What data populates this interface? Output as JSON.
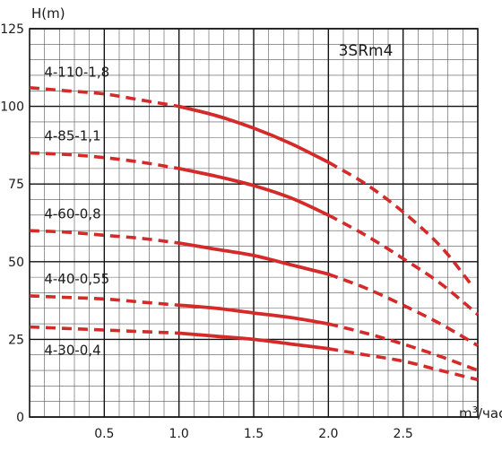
{
  "chart_data": {
    "type": "line",
    "title": "3SRm4",
    "ylabel": "H(m)",
    "xlabel_base": "m",
    "xlabel_sup": "3",
    "xlabel_tail": "/час",
    "xlim": [
      0,
      3.0
    ],
    "ylim": [
      0,
      125
    ],
    "x_ticks": [
      0.5,
      1.0,
      1.5,
      2.0,
      2.5
    ],
    "x_tick_labels": [
      "0.5",
      "1.0",
      "1.5",
      "2.0",
      "2.5"
    ],
    "y_ticks": [
      0,
      25,
      50,
      75,
      100,
      125
    ],
    "y_tick_labels": [
      "0",
      "25",
      "50",
      "75",
      "100",
      "125"
    ],
    "grid": true,
    "line_color": "#d42a2a",
    "series": [
      {
        "name": "4-110-1,8",
        "x": [
          0,
          0.25,
          0.5,
          0.75,
          1.0,
          1.25,
          1.5,
          1.75,
          2.0,
          2.25,
          2.5,
          2.75,
          2.95
        ],
        "y": [
          106,
          105,
          104,
          102,
          100,
          97,
          93,
          88,
          82,
          75,
          66,
          55,
          43
        ],
        "solid_range": [
          1.0,
          2.0
        ]
      },
      {
        "name": "4-85-1,1",
        "x": [
          0,
          0.25,
          0.5,
          0.75,
          1.0,
          1.25,
          1.5,
          1.75,
          2.0,
          2.25,
          2.5,
          2.75,
          3.0
        ],
        "y": [
          85,
          84.5,
          83.5,
          82,
          80,
          77.5,
          74.5,
          70.5,
          65,
          58.5,
          51,
          43,
          33
        ],
        "solid_range": [
          1.0,
          2.0
        ]
      },
      {
        "name": "4-60-0,8",
        "x": [
          0,
          0.25,
          0.5,
          0.75,
          1.0,
          1.25,
          1.5,
          1.75,
          2.0,
          2.25,
          2.5,
          2.75,
          3.0
        ],
        "y": [
          60,
          59.5,
          58.5,
          57.5,
          56,
          54,
          52,
          49,
          46,
          41.5,
          36,
          30,
          23
        ],
        "solid_range": [
          1.0,
          2.0
        ]
      },
      {
        "name": "4-40-0,55",
        "x": [
          0,
          0.25,
          0.5,
          0.75,
          1.0,
          1.25,
          1.5,
          1.75,
          2.0,
          2.25,
          2.5,
          2.75,
          3.0
        ],
        "y": [
          39,
          38.5,
          38,
          37,
          36,
          35,
          33.5,
          32,
          30,
          27,
          23.5,
          19.5,
          15
        ],
        "solid_range": [
          1.0,
          2.0
        ]
      },
      {
        "name": "4-30-0,4",
        "x": [
          0,
          0.25,
          0.5,
          0.75,
          1.0,
          1.25,
          1.5,
          1.75,
          2.0,
          2.25,
          2.5,
          2.75,
          3.0
        ],
        "y": [
          29,
          28.5,
          28,
          27.5,
          27,
          26,
          25,
          23.5,
          22,
          20,
          18,
          15,
          12
        ],
        "solid_range": [
          1.0,
          2.0
        ]
      }
    ],
    "series_label_anchor": [
      [
        0.05,
        109.5
      ],
      [
        0.05,
        89
      ],
      [
        0.05,
        64
      ],
      [
        0.05,
        43
      ],
      [
        0.05,
        20
      ]
    ]
  }
}
